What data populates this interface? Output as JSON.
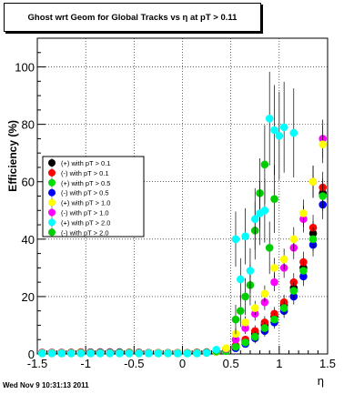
{
  "chart_data": {
    "type": "scatter",
    "title": "Ghost wrt Geom for Global Tracks vs   η at pT > 0.11",
    "xlabel": "η",
    "ylabel": "Efficiency (%)",
    "xlim": [
      -1.5,
      1.5
    ],
    "ylim": [
      0,
      110
    ],
    "x_ticks": [
      "-1.5",
      "-1",
      "-0.5",
      "0",
      "0.5",
      "1",
      "1.5"
    ],
    "y_ticks": [
      "0",
      "20",
      "40",
      "60",
      "80",
      "100"
    ],
    "grid": true,
    "legend_position": "left-middle",
    "series": [
      {
        "name": "(+) with pT > 0.1",
        "color": "#000000",
        "points": [
          [
            -1.45,
            0.4
          ],
          [
            -1.35,
            0.4
          ],
          [
            -1.25,
            0.4
          ],
          [
            -1.15,
            0.5
          ],
          [
            -1.05,
            0.5
          ],
          [
            -0.95,
            0.5
          ],
          [
            -0.85,
            0.6
          ],
          [
            -0.75,
            0.6
          ],
          [
            -0.65,
            0.6
          ],
          [
            -0.55,
            0.5
          ],
          [
            -0.45,
            0.5
          ],
          [
            -0.35,
            0.4
          ],
          [
            -0.25,
            0.4
          ],
          [
            -0.15,
            0.4
          ],
          [
            -0.05,
            0.4
          ],
          [
            0.05,
            0.4
          ],
          [
            0.15,
            0.5
          ],
          [
            0.25,
            0.6
          ],
          [
            0.35,
            0.8
          ],
          [
            0.45,
            1.1
          ],
          [
            0.55,
            2.5
          ],
          [
            0.65,
            4.5
          ],
          [
            0.75,
            7
          ],
          [
            0.85,
            10
          ],
          [
            0.95,
            13
          ],
          [
            1.05,
            17
          ],
          [
            1.15,
            23
          ],
          [
            1.25,
            30
          ],
          [
            1.35,
            42
          ],
          [
            1.45,
            56
          ]
        ]
      },
      {
        "name": "(-) with pT > 0.1",
        "color": "#ff0000",
        "points": [
          [
            -1.45,
            0.5
          ],
          [
            -1.35,
            0.5
          ],
          [
            -1.25,
            0.5
          ],
          [
            -1.15,
            0.5
          ],
          [
            -1.05,
            0.6
          ],
          [
            -0.95,
            0.6
          ],
          [
            -0.85,
            0.6
          ],
          [
            -0.75,
            0.6
          ],
          [
            -0.65,
            0.5
          ],
          [
            -0.55,
            0.5
          ],
          [
            -0.45,
            0.5
          ],
          [
            -0.35,
            0.4
          ],
          [
            -0.25,
            0.4
          ],
          [
            -0.15,
            0.4
          ],
          [
            -0.05,
            0.4
          ],
          [
            0.05,
            0.4
          ],
          [
            0.15,
            0.5
          ],
          [
            0.25,
            0.6
          ],
          [
            0.35,
            0.9
          ],
          [
            0.45,
            1.3
          ],
          [
            0.55,
            3
          ],
          [
            0.65,
            5
          ],
          [
            0.75,
            8
          ],
          [
            0.85,
            11
          ],
          [
            0.95,
            14
          ],
          [
            1.05,
            18
          ],
          [
            1.15,
            25
          ],
          [
            1.25,
            32
          ],
          [
            1.35,
            44
          ],
          [
            1.45,
            58
          ]
        ]
      },
      {
        "name": "(+) with pT > 0.5",
        "color": "#00dd00",
        "points": [
          [
            -1.45,
            0.3
          ],
          [
            -1.35,
            0.3
          ],
          [
            -1.25,
            0.3
          ],
          [
            -1.15,
            0.3
          ],
          [
            -1.05,
            0.4
          ],
          [
            -0.95,
            0.4
          ],
          [
            -0.85,
            0.4
          ],
          [
            -0.75,
            0.4
          ],
          [
            -0.65,
            0.4
          ],
          [
            -0.55,
            0.4
          ],
          [
            -0.45,
            0.3
          ],
          [
            -0.35,
            0.3
          ],
          [
            -0.25,
            0.3
          ],
          [
            -0.15,
            0.3
          ],
          [
            -0.05,
            0.3
          ],
          [
            0.05,
            0.3
          ],
          [
            0.15,
            0.4
          ],
          [
            0.25,
            0.5
          ],
          [
            0.35,
            0.7
          ],
          [
            0.45,
            1.0
          ],
          [
            0.55,
            2.5
          ],
          [
            0.65,
            4
          ],
          [
            0.75,
            6
          ],
          [
            0.85,
            9
          ],
          [
            0.95,
            12
          ],
          [
            1.05,
            16
          ],
          [
            1.15,
            22
          ],
          [
            1.25,
            29
          ],
          [
            1.35,
            40
          ],
          [
            1.45,
            55
          ]
        ]
      },
      {
        "name": "(-) with pT > 0.5",
        "color": "#0000ff",
        "points": [
          [
            -1.45,
            0.4
          ],
          [
            -1.35,
            0.4
          ],
          [
            -1.25,
            0.4
          ],
          [
            -1.15,
            0.4
          ],
          [
            -1.05,
            0.4
          ],
          [
            -0.95,
            0.5
          ],
          [
            -0.85,
            0.5
          ],
          [
            -0.75,
            0.5
          ],
          [
            -0.65,
            0.5
          ],
          [
            -0.55,
            0.4
          ],
          [
            -0.45,
            0.4
          ],
          [
            -0.35,
            0.4
          ],
          [
            -0.25,
            0.3
          ],
          [
            -0.15,
            0.3
          ],
          [
            -0.05,
            0.3
          ],
          [
            0.05,
            0.3
          ],
          [
            0.15,
            0.4
          ],
          [
            0.25,
            0.5
          ],
          [
            0.35,
            0.8
          ],
          [
            0.45,
            1.2
          ],
          [
            0.55,
            2
          ],
          [
            0.65,
            3.5
          ],
          [
            0.75,
            5.5
          ],
          [
            0.85,
            8
          ],
          [
            0.95,
            11
          ],
          [
            1.05,
            15
          ],
          [
            1.15,
            20
          ],
          [
            1.25,
            27
          ],
          [
            1.35,
            38
          ],
          [
            1.45,
            52
          ]
        ]
      },
      {
        "name": "(+) with pT > 1.0",
        "color": "#ffff00",
        "points": [
          [
            -1.45,
            0.3
          ],
          [
            -1.35,
            0.3
          ],
          [
            -1.25,
            0.3
          ],
          [
            -1.15,
            0.3
          ],
          [
            -1.05,
            0.3
          ],
          [
            -0.95,
            0.3
          ],
          [
            -0.85,
            0.3
          ],
          [
            -0.75,
            0.3
          ],
          [
            -0.65,
            0.3
          ],
          [
            -0.55,
            0.3
          ],
          [
            -0.45,
            0.3
          ],
          [
            -0.35,
            0.3
          ],
          [
            -0.25,
            0.3
          ],
          [
            -0.15,
            0.3
          ],
          [
            -0.05,
            0.3
          ],
          [
            0.05,
            0.3
          ],
          [
            0.15,
            0.3
          ],
          [
            0.25,
            0.4
          ],
          [
            0.35,
            0.8
          ],
          [
            0.45,
            2
          ],
          [
            0.55,
            7
          ],
          [
            0.65,
            11
          ],
          [
            0.75,
            16
          ],
          [
            0.85,
            21
          ],
          [
            0.95,
            30
          ],
          [
            1.05,
            33
          ],
          [
            1.15,
            40
          ],
          [
            1.25,
            49
          ],
          [
            1.35,
            60
          ],
          [
            1.45,
            73
          ]
        ]
      },
      {
        "name": "(-) with pT > 1.0",
        "color": "#ff00ff",
        "points": [
          [
            -1.45,
            0.3
          ],
          [
            -1.35,
            0.3
          ],
          [
            -1.25,
            0.3
          ],
          [
            -1.15,
            0.3
          ],
          [
            -1.05,
            0.3
          ],
          [
            -0.95,
            0.3
          ],
          [
            -0.85,
            0.3
          ],
          [
            -0.75,
            0.3
          ],
          [
            -0.65,
            0.3
          ],
          [
            -0.55,
            0.3
          ],
          [
            -0.45,
            0.3
          ],
          [
            -0.35,
            0.3
          ],
          [
            -0.25,
            0.3
          ],
          [
            -0.15,
            0.3
          ],
          [
            -0.05,
            0.3
          ],
          [
            0.05,
            0.3
          ],
          [
            0.15,
            0.3
          ],
          [
            0.25,
            0.4
          ],
          [
            0.35,
            0.8
          ],
          [
            0.45,
            1.8
          ],
          [
            0.55,
            5
          ],
          [
            0.65,
            9
          ],
          [
            0.75,
            14
          ],
          [
            0.85,
            18
          ],
          [
            0.95,
            25
          ],
          [
            1.05,
            30
          ],
          [
            1.15,
            37
          ],
          [
            1.25,
            47
          ],
          [
            1.35,
            60
          ],
          [
            1.45,
            75
          ]
        ]
      },
      {
        "name": "(+) with pT > 2.0",
        "color": "#00ffff",
        "points": [
          [
            -1.45,
            0.2
          ],
          [
            -1.35,
            0.2
          ],
          [
            -1.25,
            0.2
          ],
          [
            -1.15,
            0.2
          ],
          [
            -1.05,
            0.2
          ],
          [
            -0.95,
            0.2
          ],
          [
            -0.85,
            0.2
          ],
          [
            -0.75,
            0.2
          ],
          [
            -0.65,
            0.2
          ],
          [
            -0.55,
            0.2
          ],
          [
            -0.45,
            0.2
          ],
          [
            -0.35,
            0.2
          ],
          [
            -0.25,
            0.2
          ],
          [
            -0.15,
            0.2
          ],
          [
            -0.05,
            0.2
          ],
          [
            0.05,
            0.2
          ],
          [
            0.15,
            0.2
          ],
          [
            0.25,
            0.4
          ],
          [
            0.35,
            1.5
          ],
          [
            0.55,
            40
          ],
          [
            0.6,
            26
          ],
          [
            0.65,
            41
          ],
          [
            0.7,
            29
          ],
          [
            0.75,
            47
          ],
          [
            0.8,
            49
          ],
          [
            0.85,
            50
          ],
          [
            0.9,
            82
          ],
          [
            0.95,
            78
          ],
          [
            1.0,
            76
          ],
          [
            1.05,
            79
          ],
          [
            1.15,
            77
          ]
        ]
      },
      {
        "name": "(-) with pT > 2.0",
        "color": "#00cc00",
        "points": [
          [
            -1.45,
            0.2
          ],
          [
            -1.35,
            0.2
          ],
          [
            -1.25,
            0.2
          ],
          [
            -1.15,
            0.2
          ],
          [
            -1.05,
            0.2
          ],
          [
            -0.95,
            0.2
          ],
          [
            -0.85,
            0.2
          ],
          [
            -0.75,
            0.2
          ],
          [
            -0.65,
            0.2
          ],
          [
            -0.55,
            0.2
          ],
          [
            -0.45,
            0.2
          ],
          [
            -0.35,
            0.2
          ],
          [
            -0.25,
            0.2
          ],
          [
            -0.15,
            0.2
          ],
          [
            -0.05,
            0.2
          ],
          [
            0.05,
            0.2
          ],
          [
            0.15,
            0.2
          ],
          [
            0.25,
            0.4
          ],
          [
            0.35,
            1.0
          ],
          [
            0.55,
            12
          ],
          [
            0.6,
            15
          ],
          [
            0.65,
            20
          ],
          [
            0.7,
            24
          ],
          [
            0.75,
            43
          ],
          [
            0.8,
            56
          ],
          [
            0.85,
            66
          ],
          [
            0.9,
            37
          ],
          [
            0.95,
            54
          ]
        ]
      }
    ]
  },
  "footer": {
    "timestamp": "Wed Nov  9 10:31:13 2011"
  }
}
